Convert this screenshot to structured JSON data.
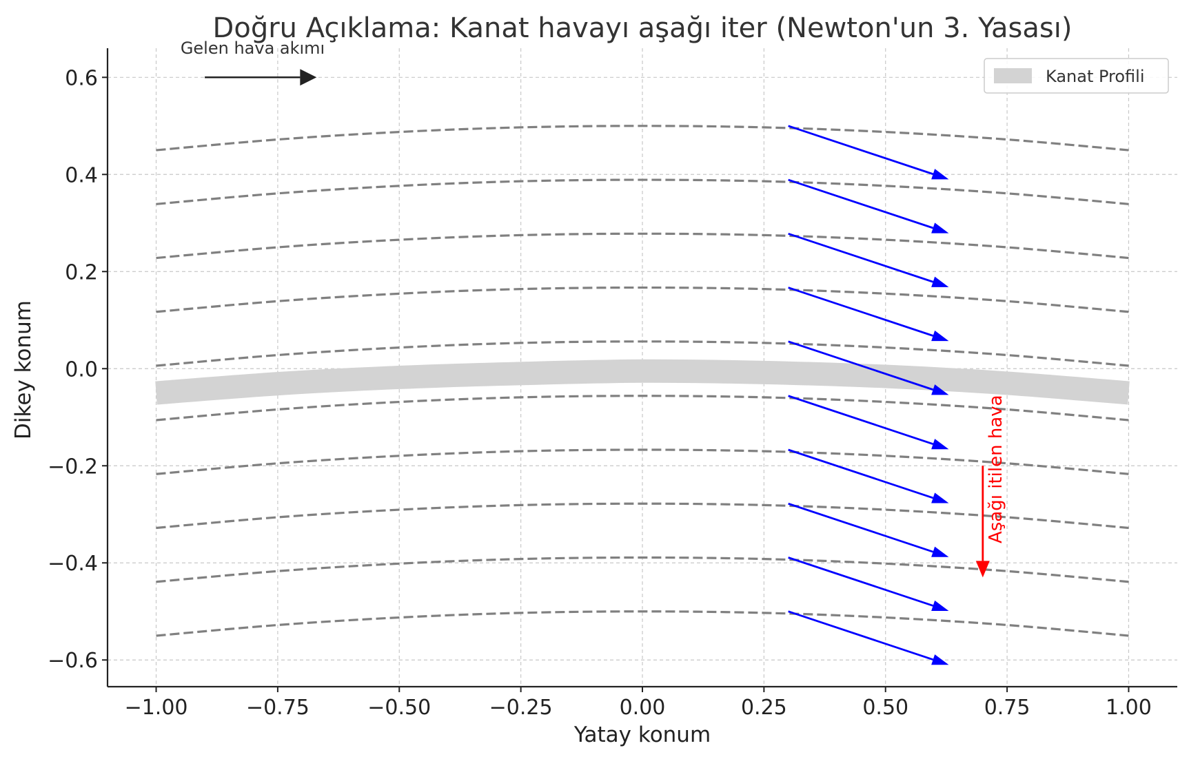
{
  "chart_data": {
    "type": "line",
    "title": "Doğru Açıklama: Kanat havayı aşağı iter (Newton'un 3. Yasası)",
    "xlabel": "Yatay konum",
    "ylabel": "Dikey konum",
    "xlim": [
      -1.1,
      1.1
    ],
    "ylim": [
      -0.655,
      0.66
    ],
    "xticks": [
      -1.0,
      -0.75,
      -0.5,
      -0.25,
      0.0,
      0.25,
      0.5,
      0.75,
      1.0
    ],
    "xtick_labels": [
      "−1.00",
      "−0.75",
      "−0.50",
      "−0.25",
      "0.00",
      "0.25",
      "0.50",
      "0.75",
      "1.00"
    ],
    "yticks": [
      -0.6,
      -0.4,
      -0.2,
      0.0,
      0.2,
      0.4,
      0.6
    ],
    "ytick_labels": [
      "−0.6",
      "−0.4",
      "−0.2",
      "0.0",
      "0.2",
      "0.4",
      "0.6"
    ],
    "grid": true,
    "legend": {
      "position": "top-right",
      "entries": [
        {
          "label": "Kanat Profili",
          "color": "#d3d3d3"
        }
      ]
    },
    "wing_profile": {
      "name": "Kanat Profili",
      "x": [
        -1.0,
        -0.75,
        -0.5,
        -0.25,
        0.0,
        0.25,
        0.5,
        0.75,
        1.0
      ],
      "y": [
        -0.05,
        -0.031,
        -0.018,
        -0.01,
        -0.005,
        -0.008,
        -0.016,
        -0.03,
        -0.05
      ],
      "color": "#d3d3d3"
    },
    "streamlines": {
      "color": "#808080",
      "x": [
        -1.0,
        -0.75,
        -0.5,
        -0.25,
        0.0,
        0.25,
        0.5,
        0.75,
        1.0
      ],
      "offsets": [
        0.5,
        0.389,
        0.278,
        0.167,
        0.056,
        -0.056,
        -0.167,
        -0.278,
        -0.389,
        -0.5
      ],
      "curve": [
        -0.05,
        -0.028,
        -0.0125,
        -0.003,
        0.0,
        -0.003,
        -0.0125,
        -0.028,
        -0.05
      ]
    },
    "flow_arrows": {
      "color": "#0000ff",
      "x_start": 0.3,
      "dx": 0.33,
      "dy": -0.11,
      "y_start": [
        0.5,
        0.389,
        0.278,
        0.167,
        0.056,
        -0.056,
        -0.167,
        -0.278,
        -0.389,
        -0.5
      ]
    },
    "annotations": [
      {
        "text": "Gelen hava akımı",
        "color": "#333333",
        "arrow_from": [
          -0.9,
          0.6
        ],
        "arrow_to": [
          -0.67,
          0.6
        ]
      },
      {
        "text": "Aşağı itilen hava",
        "color": "#ff0000",
        "arrow_from": [
          0.7,
          -0.2
        ],
        "arrow_to": [
          0.7,
          -0.43
        ]
      }
    ]
  }
}
